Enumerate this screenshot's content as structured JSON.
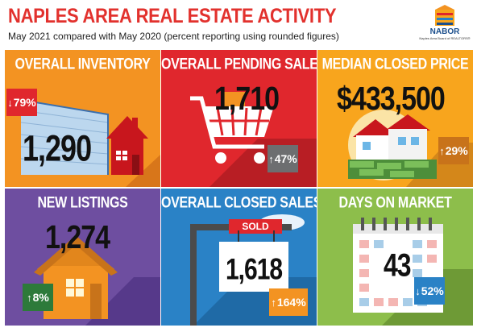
{
  "header": {
    "title": "NAPLES AREA REAL ESTATE ACTIVITY",
    "subtitle": "May 2021 compared with May 2020 (percent reporting using rounded figures)",
    "logo_text": "NABOR",
    "logo_sub": "Naples Area Board of REALTORS®"
  },
  "tiles": [
    {
      "title": "OVERALL INVENTORY",
      "value": "1,290",
      "change": "79%",
      "direction": "down",
      "badge_color": "#e0272d",
      "bg": "#f39322"
    },
    {
      "title": "OVERALL PENDING SALES",
      "value": "1,710",
      "change": "47%",
      "direction": "up",
      "badge_color": "#6d6e70",
      "bg": "#e0272d"
    },
    {
      "title": "MEDIAN CLOSED PRICE",
      "value": "$433,500",
      "change": "29%",
      "direction": "up",
      "badge_color": "#c8731a",
      "bg": "#f8a51d"
    },
    {
      "title": "NEW LISTINGS",
      "value": "1,274",
      "change": "8%",
      "direction": "up",
      "badge_color": "#2d7a3a",
      "bg": "#6e4ea0"
    },
    {
      "title": "OVERALL CLOSED SALES",
      "value": "1,618",
      "change": "164%",
      "direction": "up",
      "badge_color": "#f39322",
      "bg": "#2a82c6"
    },
    {
      "title": "DAYS ON MARKET",
      "value": "43",
      "change": "52%",
      "direction": "down",
      "badge_color": "#2a82c6",
      "bg": "#8dbe4b"
    }
  ],
  "sold_sign": "SOLD",
  "icons": {
    "up": "↑",
    "down": "↓"
  }
}
